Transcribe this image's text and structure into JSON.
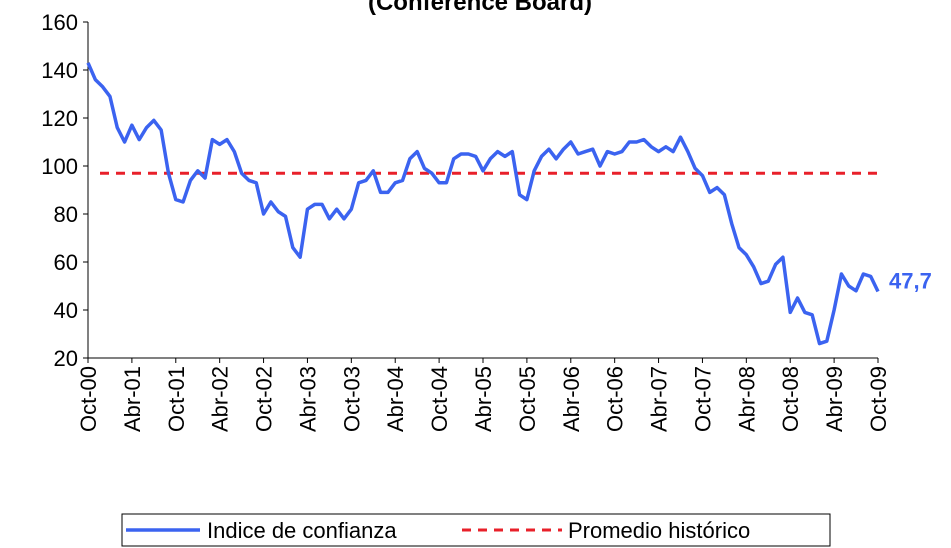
{
  "chart_data": {
    "type": "line",
    "title": "(Conference Board)",
    "categories": [
      "Oct-00",
      null,
      null,
      null,
      null,
      null,
      "Abr-01",
      null,
      null,
      null,
      null,
      null,
      "Oct-01",
      null,
      null,
      null,
      null,
      null,
      "Abr-02",
      null,
      null,
      null,
      null,
      null,
      "Oct-02",
      null,
      null,
      null,
      null,
      null,
      "Abr-03",
      null,
      null,
      null,
      null,
      null,
      "Oct-03",
      null,
      null,
      null,
      null,
      null,
      "Abr-04",
      null,
      null,
      null,
      null,
      null,
      "Oct-04",
      null,
      null,
      null,
      null,
      null,
      "Abr-05",
      null,
      null,
      null,
      null,
      null,
      "Oct-05",
      null,
      null,
      null,
      null,
      null,
      "Abr-06",
      null,
      null,
      null,
      null,
      null,
      "Oct-06",
      null,
      null,
      null,
      null,
      null,
      "Abr-07",
      null,
      null,
      null,
      null,
      null,
      "Oct-07",
      null,
      null,
      null,
      null,
      null,
      "Abr-08",
      null,
      null,
      null,
      null,
      null,
      "Oct-08",
      null,
      null,
      null,
      null,
      null,
      "Abr-09",
      null,
      null,
      null,
      null,
      null,
      "Oct-09"
    ],
    "series": [
      {
        "name": "Indice de confianza",
        "color": "#3b63f0",
        "values": [
          143,
          136,
          133,
          129,
          116,
          110,
          117,
          111,
          116,
          119,
          115,
          97,
          86,
          85,
          94,
          98,
          95,
          111,
          109,
          111,
          106,
          97,
          94,
          93,
          80,
          85,
          81,
          79,
          66,
          62,
          82,
          84,
          84,
          78,
          82,
          78,
          82,
          93,
          94,
          98,
          89,
          89,
          93,
          94,
          103,
          106,
          99,
          97,
          93,
          93,
          103,
          105,
          105,
          104,
          98,
          103,
          106,
          104,
          106,
          88,
          86,
          98,
          104,
          107,
          103,
          107,
          110,
          105,
          106,
          107,
          100,
          106,
          105,
          106,
          110,
          110,
          111,
          108,
          106,
          108,
          106,
          112,
          106,
          99,
          96,
          89,
          91,
          88,
          76,
          66,
          63,
          58,
          51,
          52,
          59,
          62,
          39,
          45,
          39,
          38,
          26,
          27,
          40,
          55,
          50,
          48,
          55,
          54,
          47.7
        ],
        "last_label": "47,7"
      }
    ],
    "average": {
      "name": "Promedio histórico",
      "color": "#e8202a",
      "value": 97
    },
    "ylim": [
      20,
      160
    ],
    "yticks": [
      20,
      40,
      60,
      80,
      100,
      120,
      140,
      160
    ],
    "legend": "bottom"
  }
}
